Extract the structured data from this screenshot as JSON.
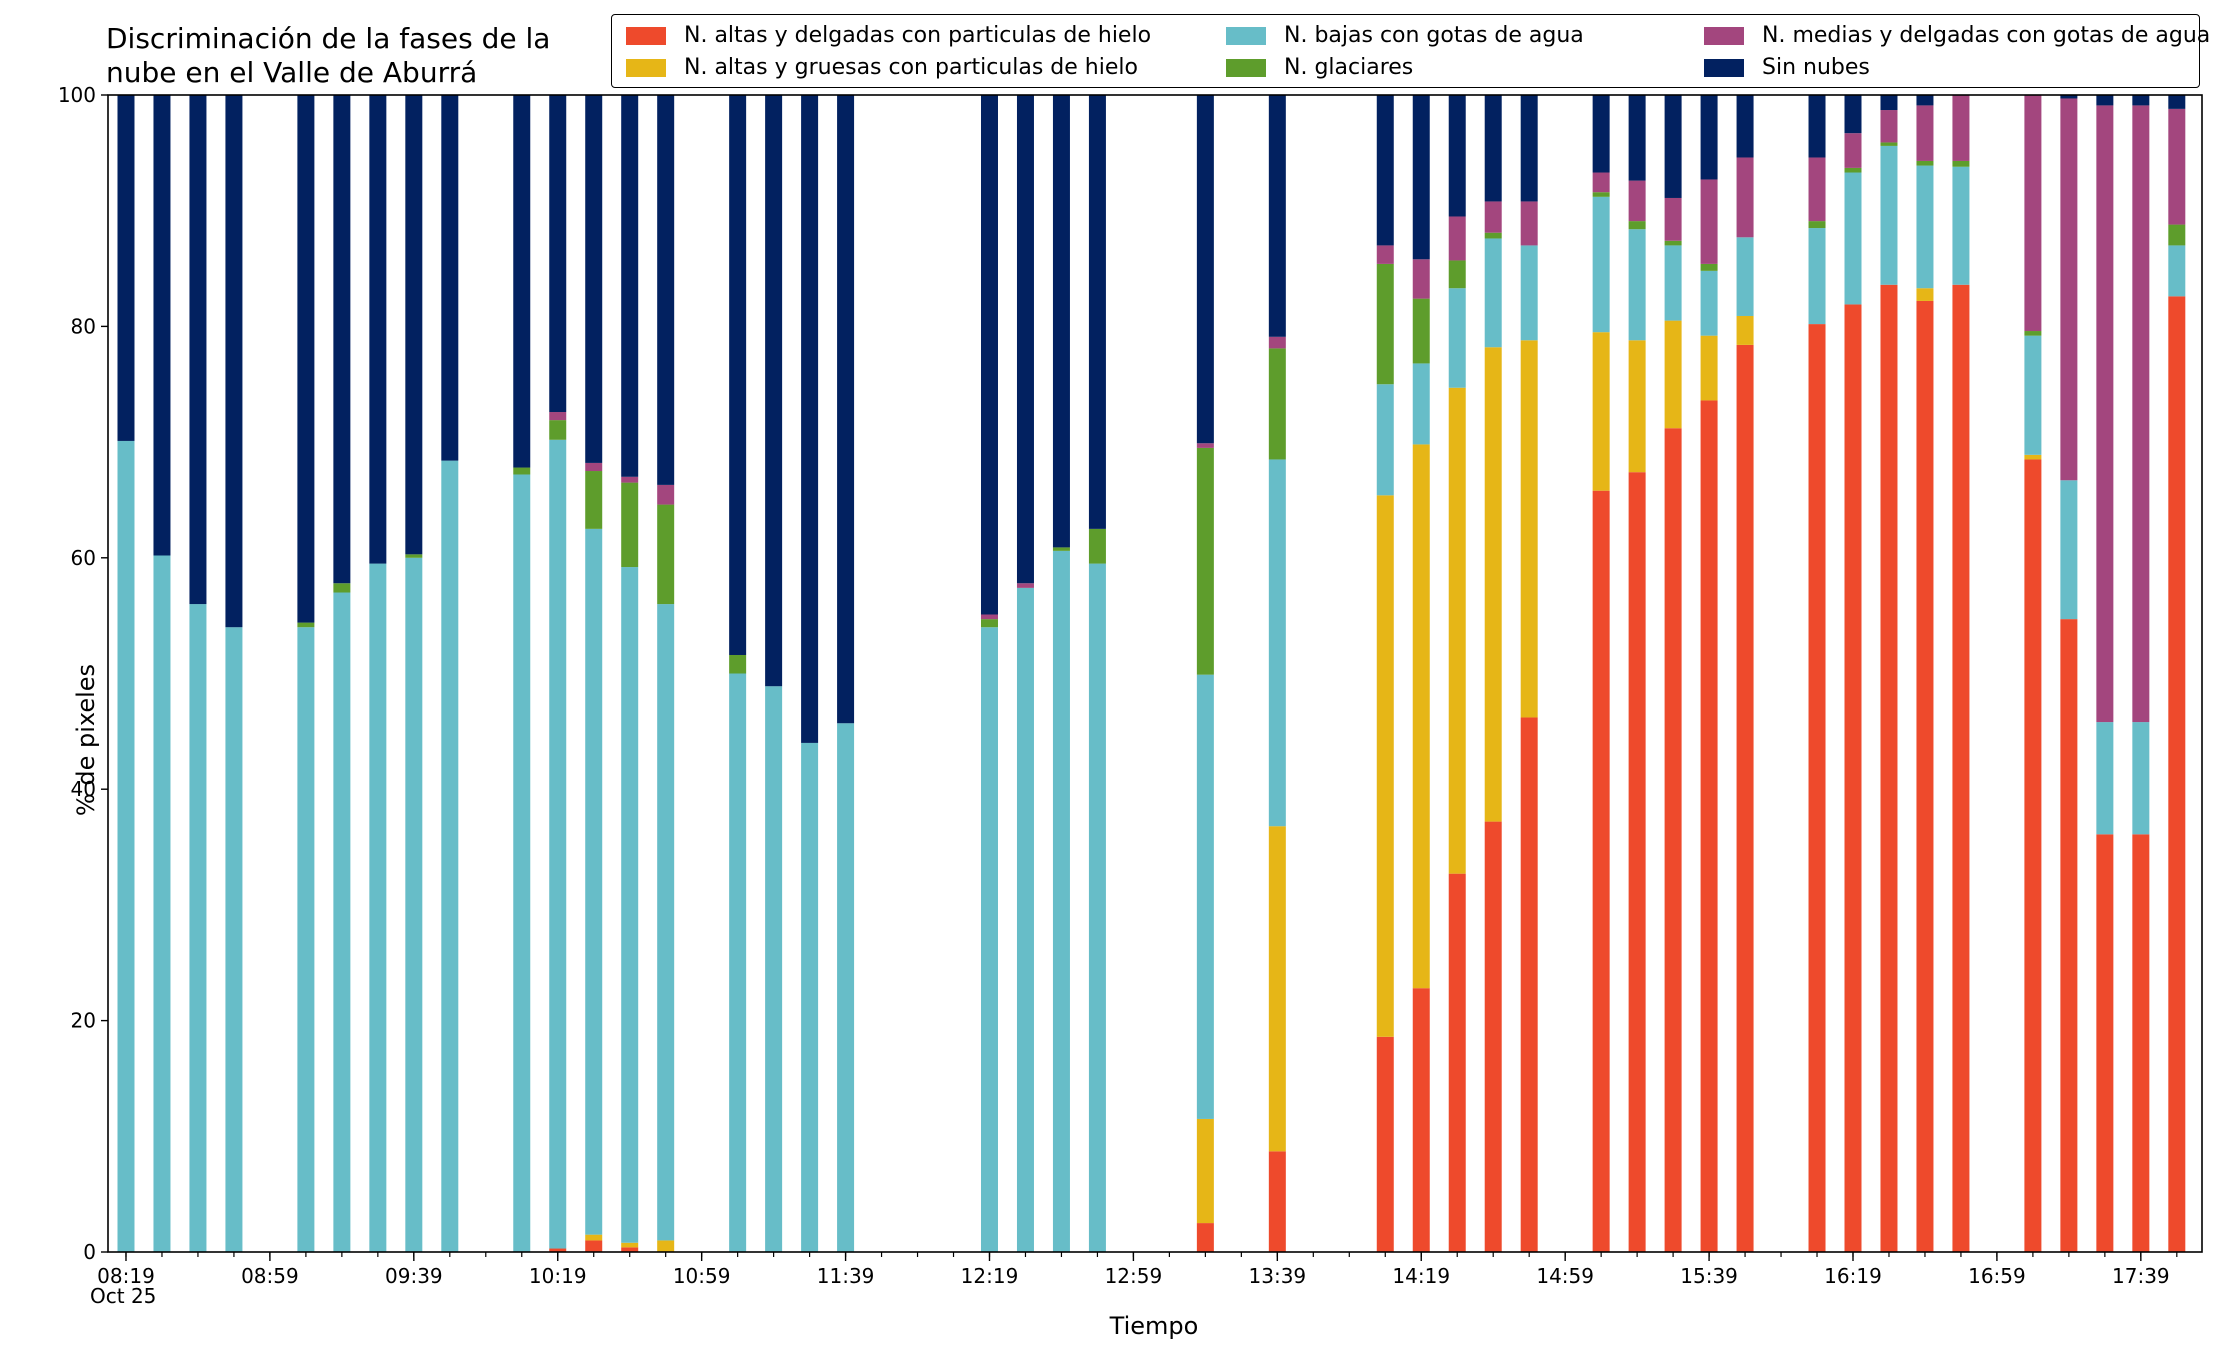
{
  "chart_data": {
    "type": "bar",
    "stacked": true,
    "title": "Discriminación de la fases de la\nnube en el Valle de Aburrá",
    "xlabel": "Tiempo",
    "ylabel": "% de pixeles",
    "ylim": [
      0,
      100
    ],
    "yticks": [
      0,
      20,
      40,
      60,
      80,
      100
    ],
    "xlim": [
      "08:14",
      "17:56"
    ],
    "xticks": [
      "08:19",
      "08:59",
      "09:39",
      "10:19",
      "10:59",
      "11:39",
      "12:19",
      "12:59",
      "13:39",
      "14:19",
      "14:59",
      "15:39",
      "16:19",
      "16:59",
      "17:39"
    ],
    "date_label": "Oct 25",
    "grid": false,
    "legend_position": "top-right",
    "series": [
      {
        "name": "N. altas y delgadas con particulas de hielo",
        "color": "#EE4A2C"
      },
      {
        "name": "N. altas y gruesas con particulas de hielo",
        "color": "#E6B617"
      },
      {
        "name": "N. bajas con gotas de agua",
        "color": "#67BDC8"
      },
      {
        "name": "N. glaciares",
        "color": "#5E9D2C"
      },
      {
        "name": "N. medias y delgadas con gotas de agua",
        "color": "#A3467E"
      },
      {
        "name": "Sin nubes",
        "color": "#022160"
      }
    ],
    "times": [
      "08:19",
      "08:29",
      "08:39",
      "08:49",
      "09:09",
      "09:19",
      "09:29",
      "09:39",
      "09:49",
      "10:09",
      "10:19",
      "10:29",
      "10:39",
      "10:49",
      "11:09",
      "11:19",
      "11:29",
      "11:39",
      "12:19",
      "12:29",
      "12:39",
      "12:49",
      "13:19",
      "13:39",
      "14:09",
      "14:19",
      "14:29",
      "14:39",
      "14:49",
      "15:09",
      "15:19",
      "15:29",
      "15:39",
      "15:49",
      "16:09",
      "16:19",
      "16:29",
      "16:39",
      "16:49",
      "17:09",
      "17:19",
      "17:29",
      "17:39",
      "17:49"
    ],
    "values": [
      [
        0,
        0,
        70.1,
        0,
        0,
        29.9
      ],
      [
        0,
        0,
        60.2,
        0,
        0,
        39.8
      ],
      [
        0,
        0,
        56,
        0,
        0,
        44
      ],
      [
        0,
        0,
        54,
        0,
        0,
        46
      ],
      [
        0,
        0,
        54,
        0.4,
        0,
        45.6
      ],
      [
        0,
        0,
        57,
        0.8,
        0,
        42.2
      ],
      [
        0,
        0,
        59.5,
        0,
        0,
        40.5
      ],
      [
        0,
        0,
        60,
        0.3,
        0,
        39.7
      ],
      [
        0,
        0,
        68.4,
        0,
        0,
        31.6
      ],
      [
        0,
        0,
        67.2,
        0.6,
        0,
        32.2
      ],
      [
        0.3,
        0,
        69.9,
        1.7,
        0.7,
        27.4
      ],
      [
        1,
        0.5,
        61,
        5,
        0.7,
        31.8
      ],
      [
        0.4,
        0.4,
        58.4,
        7.3,
        0.5,
        33
      ],
      [
        0,
        1,
        55,
        8.6,
        1.7,
        33.7
      ],
      [
        0,
        0,
        50,
        1.6,
        0,
        48.4
      ],
      [
        0,
        0,
        48.9,
        0,
        0,
        51.1
      ],
      [
        0,
        0,
        44,
        0,
        0,
        56
      ],
      [
        0,
        0,
        45.7,
        0,
        0,
        54.3
      ],
      [
        0,
        0,
        54,
        0.7,
        0.4,
        44.9
      ],
      [
        0,
        0,
        57.4,
        0,
        0.4,
        42.2
      ],
      [
        0,
        0,
        60.6,
        0.3,
        0,
        39.1
      ],
      [
        0,
        0,
        59.5,
        3,
        0,
        37.5
      ],
      [
        2.5,
        9,
        38.4,
        19.6,
        0.4,
        30.1
      ],
      [
        8.7,
        28.1,
        31.7,
        9.6,
        1,
        20.9
      ],
      [
        18.6,
        46.8,
        9.6,
        10.4,
        1.6,
        13
      ],
      [
        22.8,
        47,
        7,
        5.6,
        3.4,
        14.2
      ],
      [
        32.7,
        42,
        8.6,
        2.4,
        3.8,
        10.5
      ],
      [
        37.2,
        41,
        9.4,
        0.5,
        2.7,
        9.2
      ],
      [
        46.2,
        32.6,
        8.2,
        0,
        3.8,
        9.2
      ],
      [
        65.8,
        13.7,
        11.7,
        0.4,
        1.7,
        6.7
      ],
      [
        67.4,
        11.4,
        9.6,
        0.7,
        3.5,
        7.4
      ],
      [
        71.2,
        9.3,
        6.5,
        0.4,
        3.7,
        8.9
      ],
      [
        73.6,
        5.6,
        5.6,
        0.6,
        7.3,
        7.3
      ],
      [
        78.4,
        2.5,
        6.8,
        0,
        6.9,
        5.4
      ],
      [
        80.2,
        0,
        8.3,
        0.6,
        5.5,
        5.4
      ],
      [
        81.9,
        0,
        11.4,
        0.4,
        3,
        3.3
      ],
      [
        83.6,
        0,
        12,
        0.3,
        2.8,
        1.3
      ],
      [
        82.2,
        1.1,
        10.6,
        0.4,
        4.8,
        0.9
      ],
      [
        83.6,
        0,
        10.2,
        0.5,
        5.7,
        0
      ],
      [
        68.5,
        0.4,
        10.3,
        0.4,
        20.4,
        0
      ],
      [
        54.7,
        0,
        12,
        0,
        33,
        0.3
      ],
      [
        36.1,
        0,
        9.7,
        0,
        53.3,
        0.9
      ],
      [
        36.1,
        0,
        9.7,
        0,
        53.3,
        0.9
      ],
      [
        82.6,
        0,
        4.4,
        1.8,
        10,
        1.2
      ]
    ]
  }
}
